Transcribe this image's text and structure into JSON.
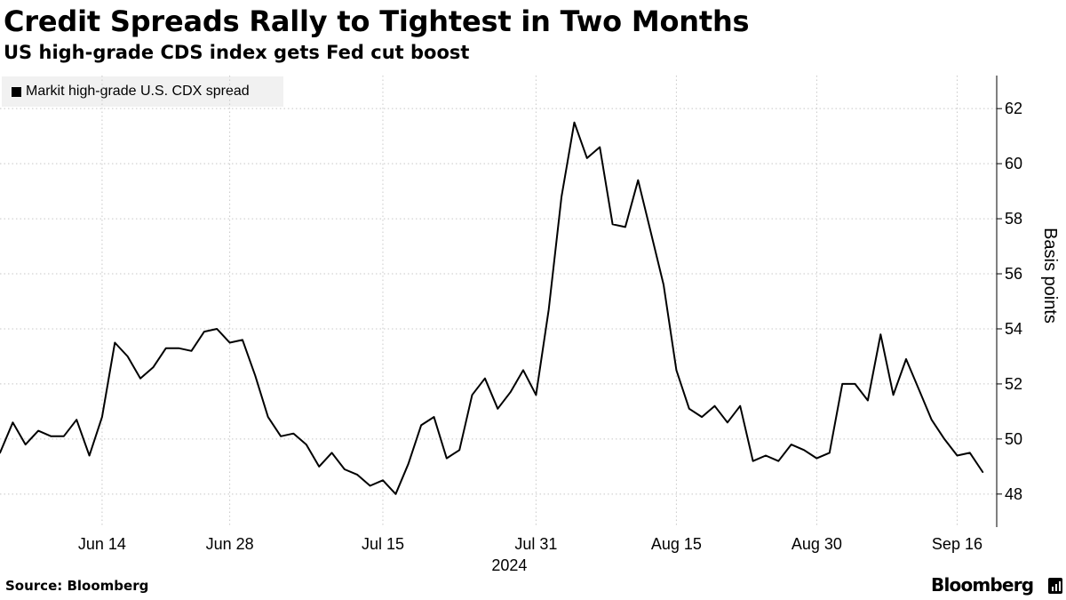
{
  "header": {
    "title": "Credit Spreads Rally to Tightest in Two Months",
    "subtitle": "US high-grade CDS index gets Fed cut boost"
  },
  "legend": {
    "label": "Markit high-grade U.S. CDX spread",
    "color": "#000000"
  },
  "footer": {
    "source": "Source: Bloomberg",
    "brand": "Bloomberg",
    "brand_icon": "bloomberg-terminal-icon"
  },
  "colors": {
    "line": "#000000",
    "grid": "#c8c8c8",
    "axis": "#000000",
    "legend_bg": "#f1f1f1"
  },
  "chart_data": {
    "type": "line",
    "title": "Credit Spreads Rally to Tightest in Two Months",
    "subtitle": "US high-grade CDS index gets Fed cut boost",
    "xlabel": "2024",
    "ylabel": "Basis points",
    "ylim": [
      46.8,
      63.2
    ],
    "y_ticks": [
      48,
      50,
      52,
      54,
      56,
      58,
      60,
      62
    ],
    "x_ticks": [
      {
        "index": 8,
        "label": "Jun 14"
      },
      {
        "index": 18,
        "label": "Jun 28"
      },
      {
        "index": 30,
        "label": "Jul 15"
      },
      {
        "index": 42,
        "label": "Jul 31"
      },
      {
        "index": 53,
        "label": "Aug 15"
      },
      {
        "index": 64,
        "label": "Aug 30"
      },
      {
        "index": 75,
        "label": "Sep 16"
      }
    ],
    "x_range": [
      0,
      78.1
    ],
    "year_label": "2024",
    "grid": true,
    "legend_position": "top-left",
    "series": [
      {
        "name": "Markit high-grade U.S. CDX spread",
        "values": [
          49.5,
          50.6,
          49.8,
          50.3,
          50.1,
          50.1,
          50.7,
          49.4,
          50.8,
          53.5,
          53.0,
          52.2,
          52.6,
          53.3,
          53.3,
          53.2,
          53.9,
          54.0,
          53.5,
          53.6,
          52.3,
          50.8,
          50.1,
          50.2,
          49.8,
          49.0,
          49.5,
          48.9,
          48.7,
          48.3,
          48.5,
          48.0,
          49.1,
          50.5,
          50.8,
          49.3,
          49.6,
          51.6,
          52.2,
          51.1,
          51.7,
          52.5,
          51.6,
          54.7,
          58.8,
          61.5,
          60.2,
          60.6,
          57.8,
          57.7,
          59.4,
          57.5,
          55.6,
          52.5,
          51.1,
          50.8,
          51.2,
          50.6,
          51.2,
          49.2,
          49.4,
          49.2,
          49.8,
          49.6,
          49.3,
          49.5,
          52.0,
          52.0,
          51.4,
          53.8,
          51.6,
          52.9,
          51.8,
          50.7,
          50.0,
          49.4,
          49.5,
          48.8
        ]
      }
    ]
  }
}
